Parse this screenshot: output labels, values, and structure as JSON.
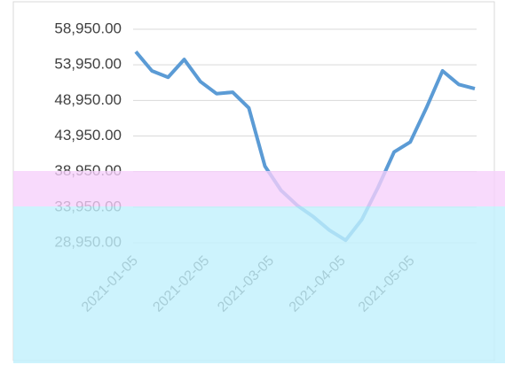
{
  "chart_data": {
    "type": "line",
    "x": [
      "2021-01-05",
      "2021-01-12",
      "2021-01-19",
      "2021-01-26",
      "2021-02-02",
      "2021-02-09",
      "2021-02-16",
      "2021-02-23",
      "2021-03-02",
      "2021-03-09",
      "2021-03-16",
      "2021-03-23",
      "2021-03-30",
      "2021-04-06",
      "2021-04-13",
      "2021-04-20",
      "2021-04-27",
      "2021-05-04",
      "2021-05-11",
      "2021-05-18",
      "2021-05-25",
      "2021-06-01"
    ],
    "series": [
      {
        "color": "#5b9bd5",
        "values": [
          55800,
          53100,
          52200,
          54700,
          51600,
          49900,
          50100,
          47900,
          39700,
          36300,
          34200,
          32600,
          30700,
          29300,
          32200,
          36700,
          41700,
          43100,
          47900,
          53100,
          51200,
          50600
        ]
      }
    ],
    "xlim": [
      "2021-01-05",
      "2021-06-01"
    ],
    "xticks": [
      "2021-01-05",
      "2021-02-05",
      "2021-03-05",
      "2021-04-05",
      "2021-05-05"
    ],
    "ylim": [
      28950,
      58950
    ],
    "yticks": [
      {
        "value": 28950,
        "label": "28,950.00"
      },
      {
        "value": 33950,
        "label": "33,950.00"
      },
      {
        "value": 38950,
        "label": "38,950.00"
      },
      {
        "value": 43950,
        "label": "43,950.00"
      },
      {
        "value": 48950,
        "label": "48,950.00"
      },
      {
        "value": 53950,
        "label": "53,950.00"
      },
      {
        "value": 58950,
        "label": "58,950.00"
      }
    ],
    "grid": true
  }
}
